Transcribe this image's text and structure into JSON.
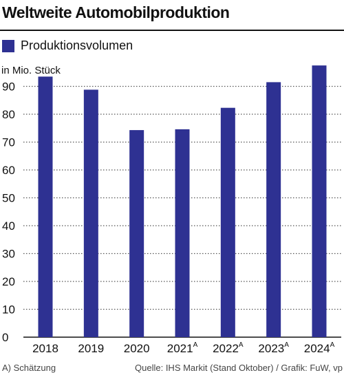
{
  "colors": {
    "bar": "#2e3192",
    "grid": "#555555"
  },
  "chart_data": {
    "type": "bar",
    "title": "Weltweite Automobilproduktion",
    "ylabel": "in Mio. Stück",
    "ylim": [
      0,
      100
    ],
    "yticks": [
      0,
      10,
      20,
      30,
      40,
      50,
      60,
      70,
      80,
      90
    ],
    "categories": [
      "2018",
      "2019",
      "2020",
      "2021",
      "2022",
      "2023",
      "2024"
    ],
    "category_superscripts": [
      "",
      "",
      "",
      "A",
      "A",
      "A",
      "A"
    ],
    "series": [
      {
        "name": "Produktionsvolumen",
        "values": [
          93.5,
          88.8,
          74.3,
          74.6,
          82.3,
          91.5,
          97.5
        ]
      }
    ],
    "grid": "horizontal dotted",
    "legend": "top-left"
  },
  "footnote": "A) Schätzung",
  "source": "Quelle:  IHS Markit (Stand Oktober) / Grafik: FuW, vp"
}
